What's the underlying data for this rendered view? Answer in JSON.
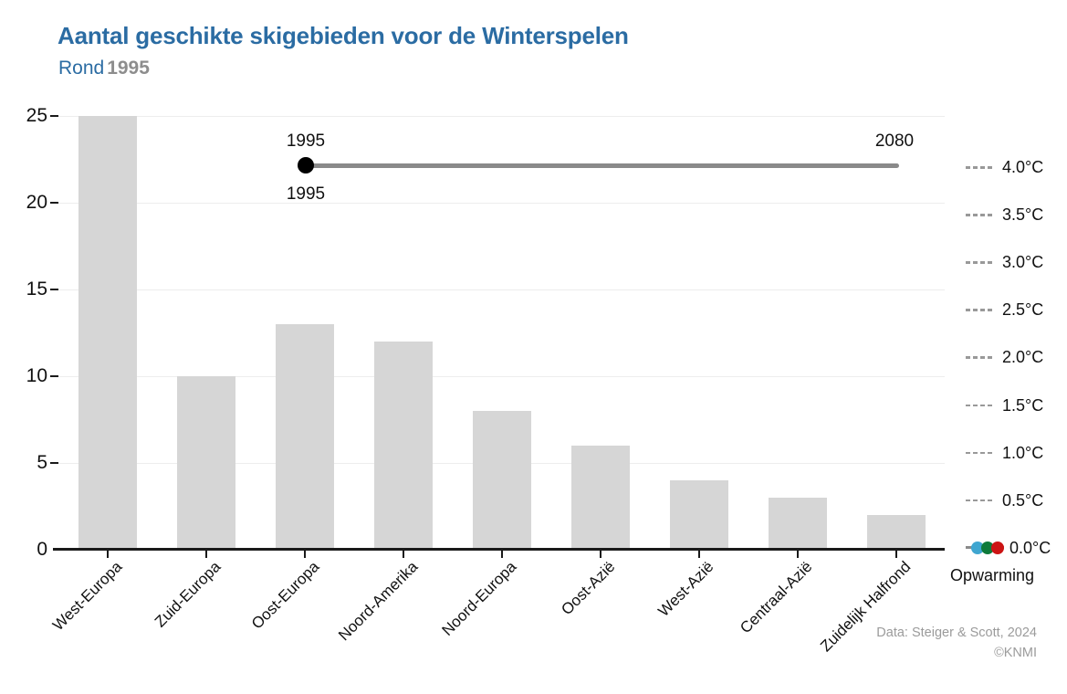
{
  "header": {
    "title": "Aantal geschikte skigebieden voor de Winterspelen",
    "subtitle_prefix": "Rond",
    "subtitle_year": "1995"
  },
  "slider": {
    "start_year": "1995",
    "end_year": "2080",
    "current_year": "1995"
  },
  "chart_data": {
    "type": "bar",
    "title": "Aantal geschikte skigebieden voor de Winterspelen",
    "subtitle": "Rond 1995",
    "categories": [
      "West-Europa",
      "Zuid-Europa",
      "Oost-Europa",
      "Noord-Amerika",
      "Noord-Europa",
      "Oost-Azië",
      "West-Azië",
      "Centraal-Azië",
      "Zuidelijk Halfrond"
    ],
    "values": [
      25,
      10,
      13,
      12,
      8,
      6,
      4,
      3,
      2
    ],
    "xlabel": "",
    "ylabel": "",
    "ylim": [
      0,
      25
    ],
    "yticks": [
      0,
      5,
      10,
      15,
      20,
      25
    ],
    "grid": true,
    "legend_position": "right"
  },
  "warming_legend": {
    "title": "Opwarming",
    "levels": [
      "4.0°C",
      "3.5°C",
      "3.0°C",
      "2.5°C",
      "2.0°C",
      "1.5°C",
      "1.0°C",
      "0.5°C",
      "0.0°C"
    ],
    "active_level": "0.0°C",
    "dot_colors": [
      "#3fa6d0",
      "#0e7a3a",
      "#cc1414"
    ]
  },
  "credits": {
    "line1": "Data: Steiger & Scott, 2024",
    "line2": "©KNMI"
  },
  "colors": {
    "title_blue": "#2b6ca3",
    "subtitle_gray": "#8d8d8d",
    "bar_gray": "#d6d6d6",
    "grid_gray": "#ededed",
    "axis_black": "#1a1a1a",
    "slider_gray": "#8a8a8a",
    "dash_gray": "#999999",
    "credit_gray": "#9b9b9b"
  }
}
